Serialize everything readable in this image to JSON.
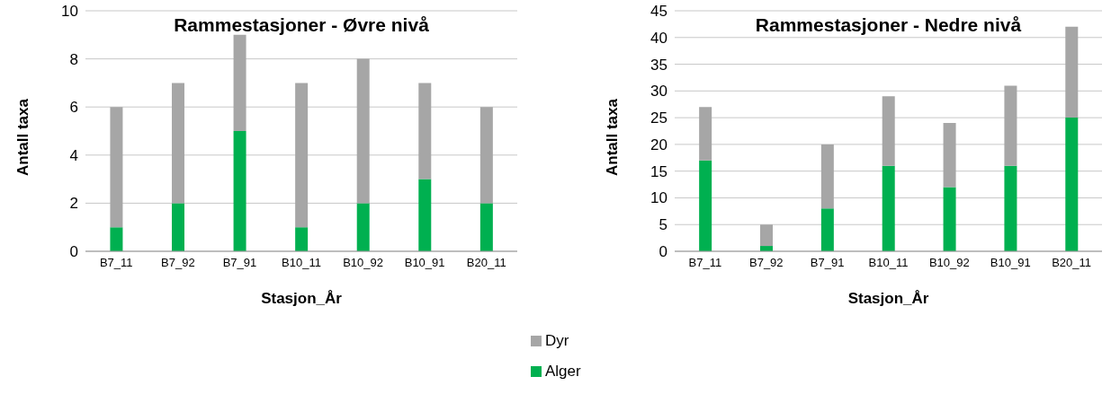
{
  "chart_data": [
    {
      "type": "bar",
      "title": "Rammestasjoner - Øvre nivå",
      "xlabel": "Stasjon_År",
      "ylabel": "Antall taxa",
      "categories": [
        "B7_11",
        "B7_92",
        "B7_91",
        "B10_11",
        "B10_92",
        "B10_91",
        "B20_11"
      ],
      "stacked": true,
      "ylim": [
        0,
        10
      ],
      "yticks": [
        0,
        2,
        4,
        6,
        8,
        10
      ],
      "grid": "y",
      "series": [
        {
          "color": "#00b050",
          "values": [
            1,
            2,
            5,
            1,
            2,
            3,
            2
          ]
        },
        {
          "color": "#a6a6a6",
          "values": [
            5,
            5,
            4,
            6,
            6,
            4,
            4
          ]
        }
      ]
    },
    {
      "type": "bar",
      "title": "Rammestasjoner - Nedre nivå",
      "xlabel": "Stasjon_År",
      "ylabel": "Antall taxa",
      "categories": [
        "B7_11",
        "B7_92",
        "B7_91",
        "B10_11",
        "B10_92",
        "B10_91",
        "B20_11"
      ],
      "stacked": true,
      "ylim": [
        0,
        45
      ],
      "yticks": [
        0,
        5,
        10,
        15,
        20,
        25,
        30,
        35,
        40,
        45
      ],
      "grid": "y",
      "legend": "bottom left",
      "series": [
        {
          "name": "Alger",
          "color": "#00b050",
          "values": [
            17,
            1,
            8,
            16,
            12,
            16,
            25
          ]
        },
        {
          "name": "Dyr",
          "color": "#a6a6a6",
          "values": [
            10,
            4,
            12,
            13,
            12,
            15,
            17
          ]
        }
      ]
    }
  ]
}
